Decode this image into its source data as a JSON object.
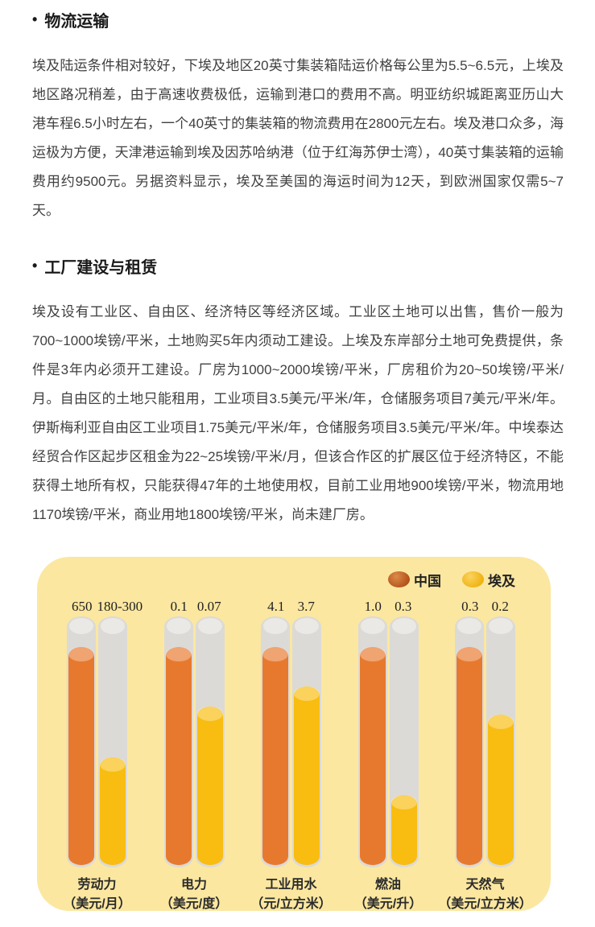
{
  "sections": [
    {
      "bullet": "•",
      "heading": "物流运输",
      "body": "埃及陆运条件相对较好，下埃及地区20英寸集装箱陆运价格每公里为5.5~6.5元，上埃及地区路况稍差，由于高速收费极低，运输到港口的费用不高。明亚纺织城距离亚历山大港车程6.5小时左右，一个40英寸的集装箱的物流费用在2800元左右。埃及港口众多，海运极为方便，天津港运输到埃及因苏哈纳港（位于红海苏伊士湾），40英寸集装箱的运输费用约9500元。另据资料显示，埃及至美国的海运时间为12天，到欧洲国家仅需5~7天。"
    },
    {
      "bullet": "•",
      "heading": "工厂建设与租赁",
      "body": "埃及设有工业区、自由区、经济特区等经济区域。工业区土地可以出售，售价一般为700~1000埃镑/平米，土地购买5年内须动工建设。上埃及东岸部分土地可免费提供，条件是3年内必须开工建设。厂房为1000~2000埃镑/平米，厂房租价为20~50埃镑/平米/月。自由区的土地只能租用，工业项目3.5美元/平米/年，仓储服务项目7美元/平米/年。伊斯梅利亚自由区工业项目1.75美元/平米/年，仓储服务项目3.5美元/平米/年。中埃泰达经贸合作区起步区租金为22~25埃镑/平米/月，但该合作区的扩展区位于经济特区，不能获得土地所有权，只能获得47年的土地使用权，目前工业用地900埃镑/平米，物流用地1170埃镑/平米，商业用地1800埃镑/平米，尚未建厂房。"
    }
  ],
  "chart_data": {
    "type": "bar",
    "title": "",
    "legend_position": "top-right",
    "grid": false,
    "series_names": [
      "中国",
      "埃及"
    ],
    "legend": [
      {
        "key": "china",
        "label": "中国",
        "color": "#e7792e",
        "dot_gradient": [
          "#dd8a4a",
          "#b04e17"
        ]
      },
      {
        "key": "egypt",
        "label": "埃及",
        "color": "#f8bd10",
        "dot_gradient": [
          "#fbd35e",
          "#eeb00d"
        ]
      }
    ],
    "categories": [
      "劳动力",
      "电力",
      "工业用水",
      "燃油",
      "天然气"
    ],
    "units": [
      "（美元/月）",
      "（美元/度）",
      "（元/立方米）",
      "（美元/升）",
      "（美元/立方米）"
    ],
    "groups": [
      {
        "name": "劳动力",
        "unit": "（美元/月）",
        "china": {
          "label": "650",
          "fill_pct": 87
        },
        "egypt": {
          "label": "180-300",
          "fill_pct": 43
        }
      },
      {
        "name": "电力",
        "unit": "（美元/度）",
        "china": {
          "label": "0.1",
          "fill_pct": 87
        },
        "egypt": {
          "label": "0.07",
          "fill_pct": 63
        }
      },
      {
        "name": "工业用水",
        "unit": "（元/立方米）",
        "china": {
          "label": "4.1",
          "fill_pct": 87
        },
        "egypt": {
          "label": "3.7",
          "fill_pct": 71
        }
      },
      {
        "name": "燃油",
        "unit": "（美元/升）",
        "china": {
          "label": "1.0",
          "fill_pct": 87
        },
        "egypt": {
          "label": "0.3",
          "fill_pct": 28
        }
      },
      {
        "name": "天然气",
        "unit": "（美元/立方米）",
        "china": {
          "label": "0.3",
          "fill_pct": 87
        },
        "egypt": {
          "label": "0.2",
          "fill_pct": 60
        }
      }
    ],
    "colors": {
      "panel_background": "#fbe7a0",
      "tube_track": "#dcdad7",
      "tube_track_top": "#ebe9e6",
      "china_bar": "#e7792e",
      "china_bar_cap": "#f09c66",
      "egypt_bar": "#f8bd10",
      "egypt_bar_cap": "#fbd45a",
      "chart_text": "#2b2b2b"
    }
  }
}
